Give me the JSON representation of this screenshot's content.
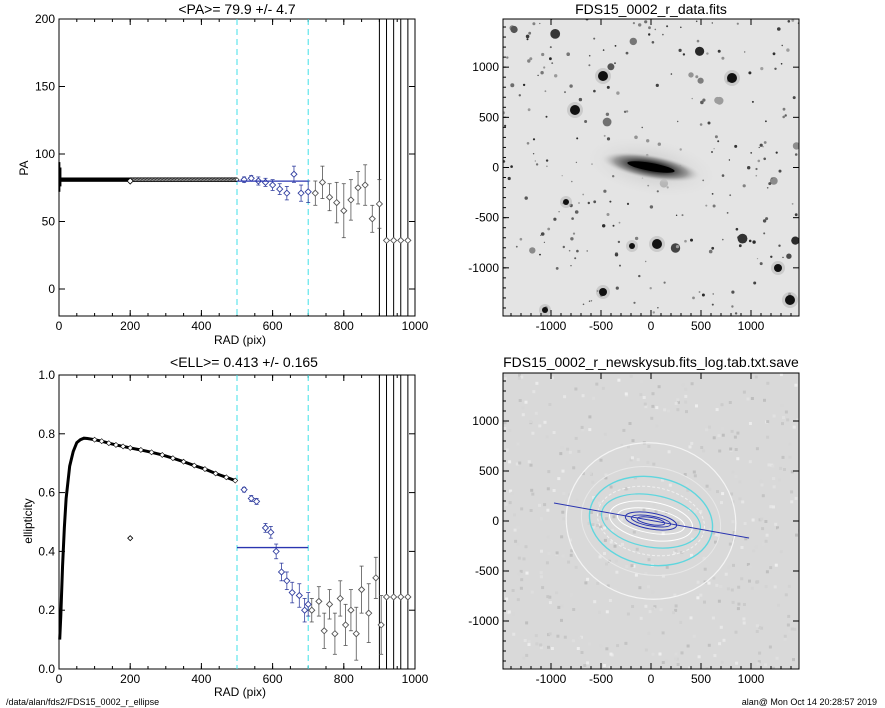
{
  "footer": {
    "path": "/data/alan/fds2/FDS15_0002_r_ellipse",
    "stamp": "alan@  Mon Oct 14 20:28:57 2019"
  },
  "colors": {
    "fit_line": "#2a35b0",
    "region_line": "#40e0e8",
    "points": "#555555",
    "fit_points": "#3340a0"
  },
  "chart_data": [
    {
      "type": "scatter",
      "title": "<PA>=  79.9 +/-   4.7",
      "xlabel": "RAD (pix)",
      "ylabel": "PA",
      "xlim": [
        0,
        1000
      ],
      "ylim": [
        -20,
        200
      ],
      "xticks": [
        0,
        200,
        400,
        600,
        800,
        1000
      ],
      "yticks": [
        0,
        50,
        100,
        150,
        200
      ],
      "region_lines_x": [
        500,
        700
      ],
      "vertical_lines_x": [
        900,
        920,
        940,
        960,
        980
      ],
      "fit_line": {
        "x": [
          500,
          700
        ],
        "y": [
          79.9,
          79.9
        ]
      },
      "series_dense": {
        "x_range": [
          1,
          500
        ],
        "y_level": 81,
        "inner_scatter_y": [
          72,
          94
        ]
      },
      "points": [
        {
          "x": 520,
          "y": 81,
          "err": 2
        },
        {
          "x": 540,
          "y": 82,
          "err": 2
        },
        {
          "x": 560,
          "y": 80,
          "err": 3
        },
        {
          "x": 580,
          "y": 79,
          "err": 3
        },
        {
          "x": 600,
          "y": 77,
          "err": 4
        },
        {
          "x": 620,
          "y": 74,
          "err": 4
        },
        {
          "x": 640,
          "y": 71,
          "err": 5
        },
        {
          "x": 660,
          "y": 85,
          "err": 6
        },
        {
          "x": 680,
          "y": 71,
          "err": 6
        },
        {
          "x": 700,
          "y": 72,
          "err": 8
        },
        {
          "x": 720,
          "y": 71,
          "err": 9
        },
        {
          "x": 740,
          "y": 79,
          "err": 12
        },
        {
          "x": 760,
          "y": 68,
          "err": 10
        },
        {
          "x": 780,
          "y": 64,
          "err": 15
        },
        {
          "x": 800,
          "y": 58,
          "err": 20
        },
        {
          "x": 820,
          "y": 66,
          "err": 15
        },
        {
          "x": 840,
          "y": 75,
          "err": 12
        },
        {
          "x": 860,
          "y": 77,
          "err": 15
        },
        {
          "x": 880,
          "y": 52,
          "err": 10
        },
        {
          "x": 900,
          "y": 63,
          "err": 18
        },
        {
          "x": 920,
          "y": 36,
          "err": 0
        },
        {
          "x": 940,
          "y": 36,
          "err": 0
        },
        {
          "x": 960,
          "y": 36,
          "err": 0
        },
        {
          "x": 980,
          "y": 36,
          "err": 0
        }
      ]
    },
    {
      "type": "scatter",
      "title": "<ELL>= 0.413 +/-  0.165",
      "xlabel": "RAD (pix)",
      "ylabel": "ellipticity",
      "xlim": [
        0,
        1000
      ],
      "ylim": [
        0,
        1
      ],
      "xticks": [
        0,
        200,
        400,
        600,
        800,
        1000
      ],
      "yticks": [
        0.0,
        0.2,
        0.4,
        0.6,
        0.8,
        1.0
      ],
      "region_lines_x": [
        500,
        700
      ],
      "vertical_lines_x": [
        900,
        920,
        940,
        960,
        980
      ],
      "fit_line": {
        "x": [
          500,
          700
        ],
        "y": [
          0.413,
          0.413
        ]
      },
      "curve": [
        [
          2,
          0.1
        ],
        [
          5,
          0.18
        ],
        [
          10,
          0.35
        ],
        [
          15,
          0.48
        ],
        [
          20,
          0.58
        ],
        [
          30,
          0.69
        ],
        [
          40,
          0.74
        ],
        [
          50,
          0.77
        ],
        [
          60,
          0.78
        ],
        [
          70,
          0.785
        ],
        [
          80,
          0.784
        ],
        [
          100,
          0.78
        ],
        [
          120,
          0.775
        ],
        [
          140,
          0.768
        ],
        [
          160,
          0.762
        ],
        [
          180,
          0.757
        ],
        [
          200,
          0.752
        ],
        [
          230,
          0.745
        ],
        [
          260,
          0.737
        ],
        [
          290,
          0.728
        ],
        [
          320,
          0.717
        ],
        [
          350,
          0.705
        ],
        [
          380,
          0.692
        ],
        [
          410,
          0.68
        ],
        [
          440,
          0.665
        ],
        [
          470,
          0.652
        ],
        [
          495,
          0.641
        ]
      ],
      "outlier": {
        "x": 200,
        "y": 0.445
      },
      "points": [
        {
          "x": 520,
          "y": 0.61,
          "err": 0.008
        },
        {
          "x": 540,
          "y": 0.58,
          "err": 0.01
        },
        {
          "x": 555,
          "y": 0.57,
          "err": 0.01
        },
        {
          "x": 580,
          "y": 0.48,
          "err": 0.015
        },
        {
          "x": 595,
          "y": 0.465,
          "err": 0.02
        },
        {
          "x": 610,
          "y": 0.4,
          "err": 0.025
        },
        {
          "x": 625,
          "y": 0.33,
          "err": 0.03
        },
        {
          "x": 640,
          "y": 0.3,
          "err": 0.03
        },
        {
          "x": 655,
          "y": 0.26,
          "err": 0.035
        },
        {
          "x": 675,
          "y": 0.25,
          "err": 0.04
        },
        {
          "x": 690,
          "y": 0.2,
          "err": 0.04
        },
        {
          "x": 700,
          "y": 0.22,
          "err": 0.04
        },
        {
          "x": 710,
          "y": 0.2,
          "err": 0.04
        },
        {
          "x": 730,
          "y": 0.23,
          "err": 0.05
        },
        {
          "x": 745,
          "y": 0.13,
          "err": 0.06
        },
        {
          "x": 760,
          "y": 0.22,
          "err": 0.05
        },
        {
          "x": 775,
          "y": 0.12,
          "err": 0.07
        },
        {
          "x": 790,
          "y": 0.24,
          "err": 0.06
        },
        {
          "x": 805,
          "y": 0.15,
          "err": 0.07
        },
        {
          "x": 820,
          "y": 0.2,
          "err": 0.07
        },
        {
          "x": 835,
          "y": 0.12,
          "err": 0.09
        },
        {
          "x": 850,
          "y": 0.27,
          "err": 0.08
        },
        {
          "x": 870,
          "y": 0.19,
          "err": 0.1
        },
        {
          "x": 890,
          "y": 0.31,
          "err": 0.07
        },
        {
          "x": 905,
          "y": 0.15,
          "err": 0.1
        },
        {
          "x": 920,
          "y": 0.245,
          "err": 0
        },
        {
          "x": 940,
          "y": 0.245,
          "err": 0
        },
        {
          "x": 960,
          "y": 0.245,
          "err": 0
        },
        {
          "x": 980,
          "y": 0.245,
          "err": 0
        }
      ]
    },
    {
      "type": "heatmap",
      "title": "FDS15_0002_r_data.fits",
      "xlim": [
        -1480,
        1480
      ],
      "ylim": [
        -1480,
        1480
      ],
      "xticks": [
        -1000,
        -500,
        0,
        500,
        1000
      ],
      "yticks": [
        -1000,
        -500,
        0,
        500,
        1000
      ]
    },
    {
      "type": "heatmap",
      "title": "FDS15_0002_r_newskysub.fits_log.tab.txt.save",
      "xlim": [
        -1480,
        1480
      ],
      "ylim": [
        -1480,
        1480
      ],
      "xticks": [
        -1000,
        -500,
        0,
        500,
        1000
      ],
      "yticks": [
        -1000,
        -500,
        0,
        500,
        1000
      ],
      "pa_line": {
        "x": [
          -980,
          980
        ],
        "y": [
          175,
          -175
        ]
      }
    }
  ]
}
